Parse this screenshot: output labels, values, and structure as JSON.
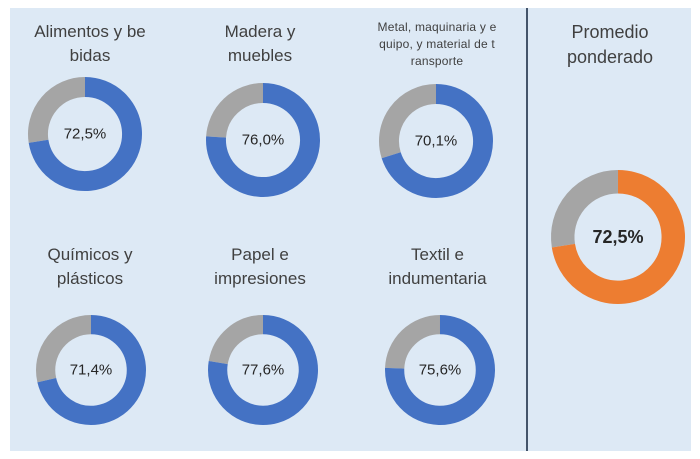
{
  "colors": {
    "filled": "#4472c4",
    "remainder": "#a5a5a5",
    "highlight": "#ed7d31",
    "panel": "#dde9f5"
  },
  "chart_data": [
    {
      "type": "pie",
      "title": "Alimentos  y be\nbidas",
      "value": 72.5,
      "label": "72,5%"
    },
    {
      "type": "pie",
      "title": "Madera y\nmuebles",
      "value": 76.0,
      "label": "76,0%"
    },
    {
      "type": "pie",
      "title": "Metal, maquinaria y e\nquipo, y material de  t\nransporte",
      "value": 70.1,
      "label": "70,1%"
    },
    {
      "type": "pie",
      "title": "Químicos  y\nplásticos",
      "value": 71.4,
      "label": "71,4%"
    },
    {
      "type": "pie",
      "title": "Papel e\nimpresiones",
      "value": 77.6,
      "label": "77,6%"
    },
    {
      "type": "pie",
      "title": "Textil e\nindumentaria",
      "value": 75.6,
      "label": "75,6%"
    },
    {
      "type": "pie",
      "title": "Promedio\nponderado",
      "value": 72.5,
      "label": "72,5%"
    }
  ]
}
